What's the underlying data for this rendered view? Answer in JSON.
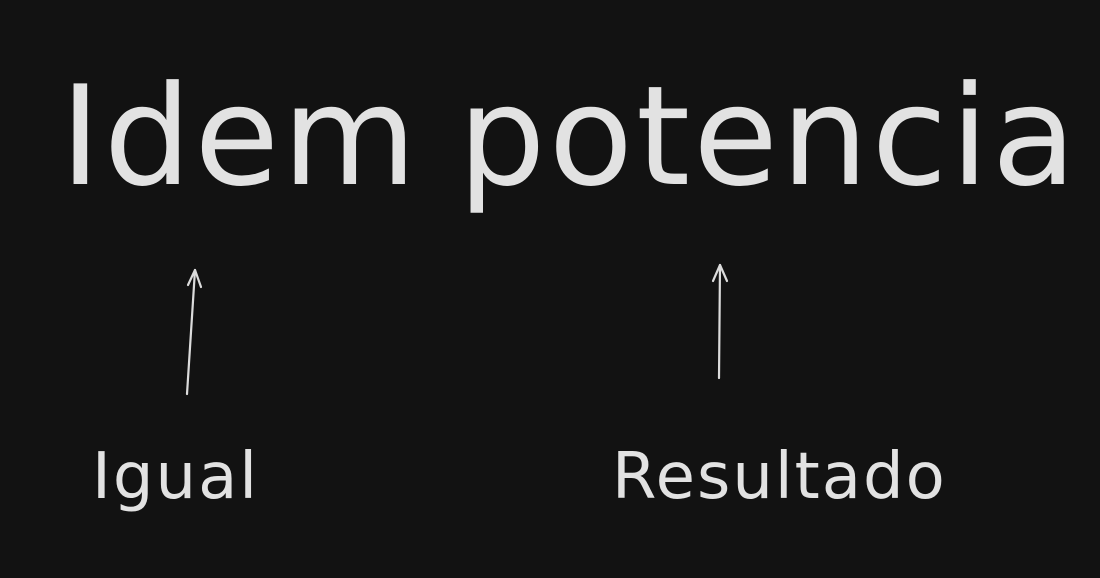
{
  "heading": {
    "word_1": "Idem",
    "word_2": "potencia"
  },
  "labels": {
    "left": "Igual",
    "right": "Resultado"
  },
  "colors": {
    "background": "#121212",
    "text": "#e2e2e2",
    "arrow": "#dcdcdc"
  }
}
